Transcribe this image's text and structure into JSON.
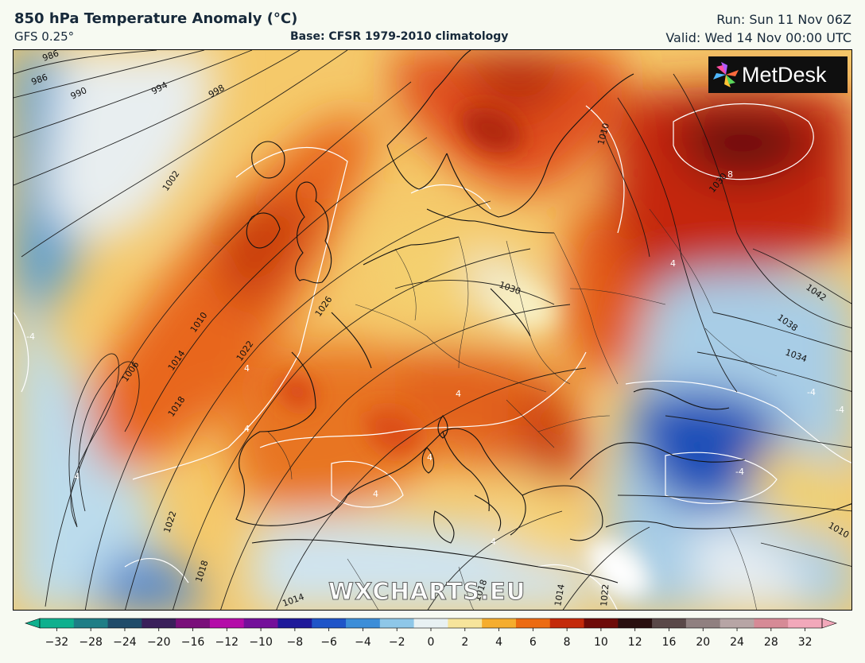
{
  "header": {
    "title": "850 hPa Temperature Anomaly (°C)",
    "model": "GFS 0.25°",
    "base": "Base: CFSR 1979-2010 climatology",
    "run": "Run: Sun 11 Nov 06Z",
    "valid": "Valid: Wed 14 Nov 00:00 UTC"
  },
  "branding": {
    "logo_text": "MetDesk",
    "logo_icon": "metdesk-pinwheel-icon",
    "watermark": "WXCHARTS.EU"
  },
  "isobar_labels": [
    "986",
    "986",
    "990",
    "994",
    "998",
    "1002",
    "1006",
    "1010",
    "1014",
    "1018",
    "1022",
    "1026",
    "1030",
    "1010",
    "1030",
    "1042",
    "1038",
    "1034",
    "1022",
    "1018",
    "1014",
    "1018",
    "1014",
    "1022",
    "1010"
  ],
  "anomaly_labels": [
    "8",
    "4",
    "-4",
    "4",
    "4",
    "4",
    "4",
    "4",
    "-4",
    "-4",
    "-4",
    "4",
    "4"
  ],
  "colorbar": {
    "ticks": [
      "−32",
      "−28",
      "−24",
      "−20",
      "−16",
      "−12",
      "−10",
      "−8",
      "−6",
      "−4",
      "−2",
      "0",
      "2",
      "4",
      "6",
      "8",
      "10",
      "12",
      "16",
      "20",
      "24",
      "28",
      "32"
    ],
    "colors": [
      "#0fb08e",
      "#1e7e86",
      "#204c6a",
      "#3a1f5a",
      "#7a0f7a",
      "#b40ca8",
      "#74109a",
      "#1f1a9a",
      "#1f55c8",
      "#3c8ed8",
      "#8ec7e8",
      "#e8f1f3",
      "#f6e49b",
      "#f5ad2e",
      "#ec6b12",
      "#c42a0a",
      "#6e0b08",
      "#2a1010",
      "#5a4848",
      "#908080",
      "#b7a5a5",
      "#d68a96",
      "#f2a8ba"
    ]
  }
}
